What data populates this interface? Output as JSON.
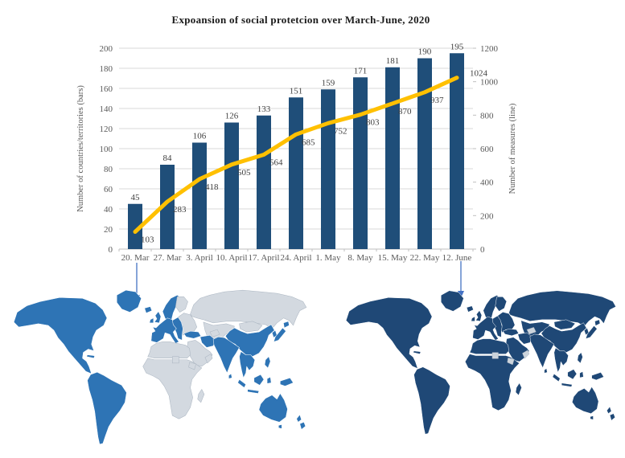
{
  "title": "Expoansion of social protetcion over March-June, 2020",
  "chart_data": {
    "type": "bar",
    "subtype": "combo-bar-line-dual-axis",
    "categories": [
      "20. Mar",
      "27. Mar",
      "3. April",
      "10. April",
      "17. April",
      "24. April",
      "1. May",
      "8. May",
      "15. May",
      "22. May",
      "12. June"
    ],
    "series": [
      {
        "name": "Number of countries/territories (bars)",
        "type": "bar",
        "axis": "left",
        "color": "#1f4e79",
        "values": [
          45,
          84,
          106,
          126,
          133,
          151,
          159,
          171,
          181,
          190,
          195
        ]
      },
      {
        "name": "Number of measures (line)",
        "type": "line",
        "axis": "right",
        "color": "#ffc000",
        "values": [
          103,
          283,
          418,
          505,
          564,
          685,
          752,
          803,
          870,
          937,
          1024
        ]
      }
    ],
    "left_axis": {
      "title": "Number of countries/territories (bars)",
      "min": 0,
      "max": 200,
      "step": 20
    },
    "right_axis": {
      "title": "Number of measures (line)",
      "min": 0,
      "max": 1200,
      "step": 200
    },
    "grid": true,
    "legend_position": "none",
    "data_labels": true
  },
  "annotations": {
    "arrows": [
      {
        "from_category": "20. Mar",
        "to_map": "march",
        "color": "#4472c4"
      },
      {
        "from_category": "12. June",
        "to_map": "june",
        "color": "#4472c4"
      }
    ]
  },
  "maps": {
    "march": {
      "covered_color": "#2e74b5",
      "uncovered_color": "#d3d9e0",
      "border_color": "#a9b4c0",
      "covered_regions": [
        "north-america",
        "greenland",
        "iceland",
        "cuba",
        "south-america",
        "uk",
        "ireland",
        "west-europe",
        "scandinavia",
        "central-europe",
        "turkey",
        "iran",
        "india",
        "sri-lanka",
        "china",
        "korea",
        "japan",
        "se-asia",
        "indonesia",
        "philippines",
        "australia",
        "tasmania",
        "new-zealand"
      ],
      "uncovered_regions": [
        "finland",
        "eastern-europe",
        "russia",
        "central-asia",
        "mongolia",
        "middle-east",
        "north-africa",
        "sub-saharan-africa",
        "madagascar",
        "turkmenistan-patch",
        "oman-yemen-patch",
        "chad-patch",
        "horn-of-africa-patch"
      ]
    },
    "june": {
      "covered_color": "#1f4876",
      "uncovered_color": "#ccd4dc",
      "border_color": "#a9b4c0",
      "covered_regions": [
        "north-america",
        "greenland",
        "iceland",
        "cuba",
        "south-america",
        "uk",
        "ireland",
        "west-europe",
        "scandinavia",
        "finland",
        "central-europe",
        "eastern-europe",
        "russia",
        "central-asia",
        "mongolia",
        "turkey",
        "iran",
        "middle-east",
        "north-africa",
        "sub-saharan-africa",
        "madagascar",
        "india",
        "sri-lanka",
        "china",
        "korea",
        "japan",
        "se-asia",
        "indonesia",
        "philippines",
        "australia",
        "tasmania",
        "new-zealand"
      ],
      "uncovered_regions": [
        "turkmenistan-patch",
        "oman-yemen-patch",
        "chad-patch",
        "horn-of-africa-patch"
      ]
    }
  },
  "styles": {
    "tick_color": "#595959",
    "grid_color": "#d9d9d9",
    "axis_line_color": "#bfbfbf",
    "data_label_color": "#3f3f3f",
    "title_color": "#1a1a1a",
    "background": "#ffffff"
  }
}
